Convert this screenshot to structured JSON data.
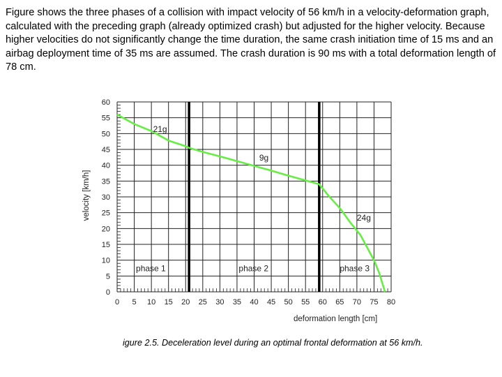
{
  "intro_text": "Figure shows the three phases of a collision with impact velocity of 56 km/h in a velocity-deformation graph, calculated with the preceding graph (already optimized crash) but adjusted for the higher velocity. Because higher velocities do not significantly change the time duration, the same crash initiation time of 15 ms and an airbag deployment time of 35 ms are assumed. The crash duration is 90 ms with a total deformation length of 78 cm.",
  "caption": "igure 2.5. Deceleration level during an optimal frontal deformation at 56 km/h.",
  "colors": {
    "curve": "#66ee44",
    "grid": "#222222",
    "phase_line": "#000000"
  },
  "chart_data": {
    "type": "line",
    "title": "",
    "xlabel": "deformation length [cm]",
    "ylabel": "velocity [km/h]",
    "xlim": [
      0,
      80
    ],
    "ylim": [
      0,
      60
    ],
    "x_ticks": [
      0,
      5,
      10,
      15,
      20,
      25,
      30,
      35,
      40,
      45,
      50,
      55,
      60,
      65,
      70,
      75,
      80
    ],
    "y_ticks": [
      0,
      5,
      10,
      15,
      20,
      25,
      30,
      35,
      40,
      45,
      50,
      55,
      60
    ],
    "grid": true,
    "phase_boundaries": [
      21,
      59
    ],
    "series": [
      {
        "x": [
          0,
          5,
          10,
          15,
          20,
          21,
          25,
          30,
          35,
          40,
          45,
          50,
          55,
          59,
          62,
          65,
          68,
          71,
          73,
          75,
          76.5,
          77.5,
          78.2
        ],
        "y": [
          56,
          53,
          50.8,
          47.8,
          46,
          45.5,
          44.2,
          42.8,
          41.3,
          39.8,
          38.3,
          36.7,
          35.2,
          34,
          30,
          26.5,
          22,
          18,
          14,
          10,
          6,
          2.5,
          0
        ]
      }
    ],
    "annotations": [
      {
        "text": "21g",
        "x": 10.5,
        "y": 50.5
      },
      {
        "text": "9g",
        "x": 41.5,
        "y": 41.5
      },
      {
        "text": "24g",
        "x": 70,
        "y": 22.5
      },
      {
        "text": "phase 1",
        "x": 5.5,
        "y": 6.5
      },
      {
        "text": "phase 2",
        "x": 35.5,
        "y": 6.5
      },
      {
        "text": "phase 3",
        "x": 65,
        "y": 6.5
      }
    ]
  }
}
